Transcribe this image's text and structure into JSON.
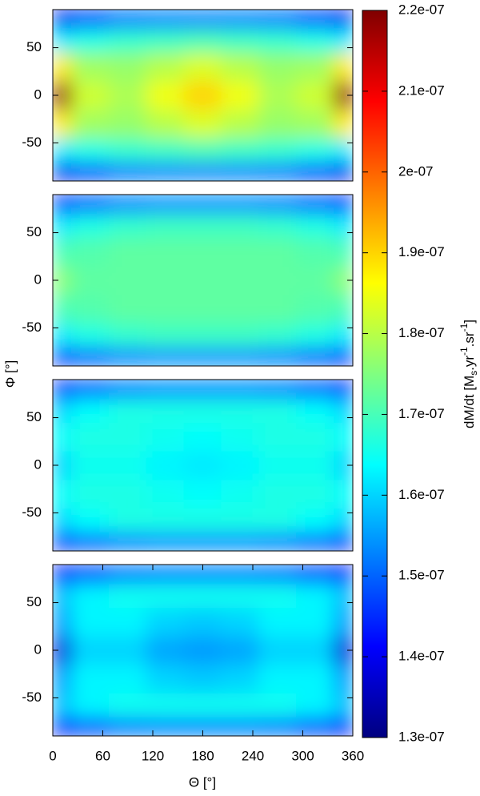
{
  "chart_data": [
    {
      "type": "heatmap",
      "xlim": [
        0,
        360
      ],
      "ylim": [
        -90,
        90
      ],
      "yticks": [
        -50,
        0,
        50
      ],
      "x": [
        0,
        45,
        90,
        135,
        180,
        225,
        270,
        315,
        360
      ],
      "y": [
        -80,
        -60,
        -30,
        0,
        30,
        60,
        80
      ],
      "z": [
        [
          1.4e-07,
          1.48e-07,
          1.52e-07,
          1.53e-07,
          1.53e-07,
          1.53e-07,
          1.52e-07,
          1.48e-07,
          1.4e-07
        ],
        [
          1.62e-07,
          1.66e-07,
          1.68e-07,
          1.69e-07,
          1.7e-07,
          1.69e-07,
          1.68e-07,
          1.66e-07,
          1.62e-07
        ],
        [
          1.88e-07,
          1.78e-07,
          1.77e-07,
          1.8e-07,
          1.83e-07,
          1.8e-07,
          1.77e-07,
          1.78e-07,
          1.88e-07
        ],
        [
          2.18e-07,
          1.82e-07,
          1.79e-07,
          1.85e-07,
          1.9e-07,
          1.85e-07,
          1.79e-07,
          1.82e-07,
          2.18e-07
        ],
        [
          1.88e-07,
          1.78e-07,
          1.77e-07,
          1.8e-07,
          1.83e-07,
          1.8e-07,
          1.77e-07,
          1.78e-07,
          1.88e-07
        ],
        [
          1.62e-07,
          1.66e-07,
          1.68e-07,
          1.69e-07,
          1.7e-07,
          1.69e-07,
          1.68e-07,
          1.66e-07,
          1.62e-07
        ],
        [
          1.4e-07,
          1.48e-07,
          1.52e-07,
          1.53e-07,
          1.53e-07,
          1.53e-07,
          1.52e-07,
          1.48e-07,
          1.4e-07
        ]
      ]
    },
    {
      "type": "heatmap",
      "xlim": [
        0,
        360
      ],
      "ylim": [
        -90,
        90
      ],
      "yticks": [
        -50,
        0,
        50
      ],
      "x": [
        0,
        45,
        90,
        135,
        180,
        225,
        270,
        315,
        360
      ],
      "y": [
        -80,
        -60,
        -30,
        0,
        30,
        60,
        80
      ],
      "z": [
        [
          1.45e-07,
          1.5e-07,
          1.53e-07,
          1.54e-07,
          1.54e-07,
          1.54e-07,
          1.53e-07,
          1.5e-07,
          1.45e-07
        ],
        [
          1.62e-07,
          1.66e-07,
          1.68e-07,
          1.69e-07,
          1.69e-07,
          1.69e-07,
          1.68e-07,
          1.66e-07,
          1.62e-07
        ],
        [
          1.7e-07,
          1.71e-07,
          1.72e-07,
          1.72e-07,
          1.72e-07,
          1.72e-07,
          1.72e-07,
          1.71e-07,
          1.7e-07
        ],
        [
          1.76e-07,
          1.72e-07,
          1.72e-07,
          1.72e-07,
          1.72e-07,
          1.72e-07,
          1.72e-07,
          1.72e-07,
          1.76e-07
        ],
        [
          1.7e-07,
          1.71e-07,
          1.72e-07,
          1.72e-07,
          1.72e-07,
          1.72e-07,
          1.72e-07,
          1.71e-07,
          1.7e-07
        ],
        [
          1.62e-07,
          1.66e-07,
          1.68e-07,
          1.69e-07,
          1.69e-07,
          1.69e-07,
          1.68e-07,
          1.66e-07,
          1.62e-07
        ],
        [
          1.45e-07,
          1.5e-07,
          1.53e-07,
          1.54e-07,
          1.54e-07,
          1.54e-07,
          1.53e-07,
          1.5e-07,
          1.45e-07
        ]
      ]
    },
    {
      "type": "heatmap",
      "xlim": [
        0,
        360
      ],
      "ylim": [
        -90,
        90
      ],
      "yticks": [
        -50,
        0,
        50
      ],
      "x": [
        0,
        45,
        90,
        135,
        180,
        225,
        270,
        315,
        360
      ],
      "y": [
        -80,
        -60,
        -30,
        0,
        30,
        60,
        80
      ],
      "z": [
        [
          1.45e-07,
          1.5e-07,
          1.53e-07,
          1.54e-07,
          1.54e-07,
          1.54e-07,
          1.53e-07,
          1.5e-07,
          1.45e-07
        ],
        [
          1.6e-07,
          1.64e-07,
          1.66e-07,
          1.66e-07,
          1.66e-07,
          1.66e-07,
          1.66e-07,
          1.64e-07,
          1.6e-07
        ],
        [
          1.64e-07,
          1.66e-07,
          1.66e-07,
          1.65e-07,
          1.64e-07,
          1.65e-07,
          1.66e-07,
          1.66e-07,
          1.64e-07
        ],
        [
          1.6e-07,
          1.65e-07,
          1.65e-07,
          1.63e-07,
          1.62e-07,
          1.63e-07,
          1.65e-07,
          1.65e-07,
          1.6e-07
        ],
        [
          1.64e-07,
          1.66e-07,
          1.66e-07,
          1.65e-07,
          1.64e-07,
          1.65e-07,
          1.66e-07,
          1.66e-07,
          1.64e-07
        ],
        [
          1.6e-07,
          1.64e-07,
          1.66e-07,
          1.66e-07,
          1.66e-07,
          1.66e-07,
          1.66e-07,
          1.64e-07,
          1.6e-07
        ],
        [
          1.45e-07,
          1.5e-07,
          1.53e-07,
          1.54e-07,
          1.54e-07,
          1.54e-07,
          1.53e-07,
          1.5e-07,
          1.45e-07
        ]
      ]
    },
    {
      "type": "heatmap",
      "xlim": [
        0,
        360
      ],
      "ylim": [
        -90,
        90
      ],
      "yticks": [
        -50,
        0,
        50
      ],
      "xticks": [
        0,
        60,
        120,
        180,
        240,
        300,
        360
      ],
      "x": [
        0,
        45,
        90,
        135,
        180,
        225,
        270,
        315,
        360
      ],
      "y": [
        -80,
        -60,
        -30,
        0,
        30,
        60,
        80
      ],
      "z": [
        [
          1.42e-07,
          1.48e-07,
          1.52e-07,
          1.53e-07,
          1.53e-07,
          1.53e-07,
          1.52e-07,
          1.48e-07,
          1.42e-07
        ],
        [
          1.58e-07,
          1.63e-07,
          1.65e-07,
          1.65e-07,
          1.65e-07,
          1.65e-07,
          1.65e-07,
          1.63e-07,
          1.58e-07
        ],
        [
          1.55e-07,
          1.63e-07,
          1.63e-07,
          1.6e-07,
          1.59e-07,
          1.6e-07,
          1.63e-07,
          1.63e-07,
          1.55e-07
        ],
        [
          1.38e-07,
          1.6e-07,
          1.6e-07,
          1.56e-07,
          1.55e-07,
          1.56e-07,
          1.6e-07,
          1.6e-07,
          1.38e-07
        ],
        [
          1.55e-07,
          1.63e-07,
          1.63e-07,
          1.6e-07,
          1.59e-07,
          1.6e-07,
          1.63e-07,
          1.63e-07,
          1.55e-07
        ],
        [
          1.58e-07,
          1.63e-07,
          1.65e-07,
          1.65e-07,
          1.65e-07,
          1.65e-07,
          1.65e-07,
          1.63e-07,
          1.58e-07
        ],
        [
          1.42e-07,
          1.48e-07,
          1.52e-07,
          1.53e-07,
          1.53e-07,
          1.53e-07,
          1.52e-07,
          1.48e-07,
          1.42e-07
        ]
      ]
    }
  ],
  "xlabel": "Θ [°]",
  "ylabel": "Φ [°]",
  "colorbar": {
    "colormap": "jet",
    "zlim": [
      1.3e-07,
      2.2e-07
    ],
    "ticks": [
      {
        "value": 1.3e-07,
        "label": "1.3e-07"
      },
      {
        "value": 1.4e-07,
        "label": "1.4e-07"
      },
      {
        "value": 1.5e-07,
        "label": "1.5e-07"
      },
      {
        "value": 1.6e-07,
        "label": "1.6e-07"
      },
      {
        "value": 1.7e-07,
        "label": "1.7e-07"
      },
      {
        "value": 1.8e-07,
        "label": "1.8e-07"
      },
      {
        "value": 1.9e-07,
        "label": "1.9e-07"
      },
      {
        "value": 2e-07,
        "label": "2e-07"
      },
      {
        "value": 2.1e-07,
        "label": "2.1e-07"
      },
      {
        "value": 2.2e-07,
        "label": "2.2e-07"
      }
    ],
    "label_parts": [
      "dM/dt [M",
      "s",
      ".yr",
      "-1",
      ".sr",
      "-1",
      "]"
    ]
  }
}
